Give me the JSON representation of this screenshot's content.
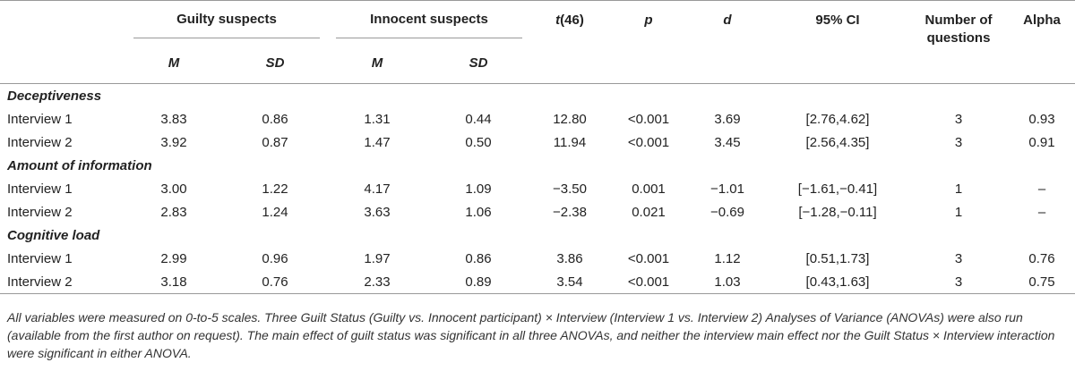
{
  "headers": {
    "guilty": "Guilty suspects",
    "innocent": "Innocent suspects",
    "t": "t",
    "t_suffix": "(46)",
    "p": "p",
    "d": "d",
    "ci": "95% CI",
    "nq_line1": "Number of",
    "nq_line2": "questions",
    "alpha": "Alpha",
    "m1": "M",
    "sd1": "SD",
    "m2": "M",
    "sd2": "SD"
  },
  "sections": [
    {
      "title": "Deceptiveness",
      "rows": [
        [
          "Interview 1",
          "3.83",
          "0.86",
          "1.31",
          "0.44",
          "12.80",
          "<0.001",
          "3.69",
          "[2.76,4.62]",
          "3",
          "0.93"
        ],
        [
          "Interview 2",
          "3.92",
          "0.87",
          "1.47",
          "0.50",
          "11.94",
          "<0.001",
          "3.45",
          "[2.56,4.35]",
          "3",
          "0.91"
        ]
      ]
    },
    {
      "title": "Amount of information",
      "rows": [
        [
          "Interview 1",
          "3.00",
          "1.22",
          "4.17",
          "1.09",
          "−3.50",
          "0.001",
          "−1.01",
          "[−1.61,−0.41]",
          "1",
          "–"
        ],
        [
          "Interview 2",
          "2.83",
          "1.24",
          "3.63",
          "1.06",
          "−2.38",
          "0.021",
          "−0.69",
          "[−1.28,−0.11]",
          "1",
          "–"
        ]
      ]
    },
    {
      "title": "Cognitive load",
      "rows": [
        [
          "Interview 1",
          "2.99",
          "0.96",
          "1.97",
          "0.86",
          "3.86",
          "<0.001",
          "1.12",
          "[0.51,1.73]",
          "3",
          "0.76"
        ],
        [
          "Interview 2",
          "3.18",
          "0.76",
          "2.33",
          "0.89",
          "3.54",
          "<0.001",
          "1.03",
          "[0.43,1.63]",
          "3",
          "0.75"
        ]
      ]
    }
  ],
  "footnote": "All variables were measured on 0-to-5 scales. Three Guilt Status (Guilty vs. Innocent participant) × Interview (Interview 1 vs. Interview 2) Analyses of Variance (ANOVAs) were also run (available from the first author on request). The main effect of guilt status was significant in all three ANOVAs, and neither the interview main effect nor the Guilt Status × Interview interaction were significant in either ANOVA."
}
